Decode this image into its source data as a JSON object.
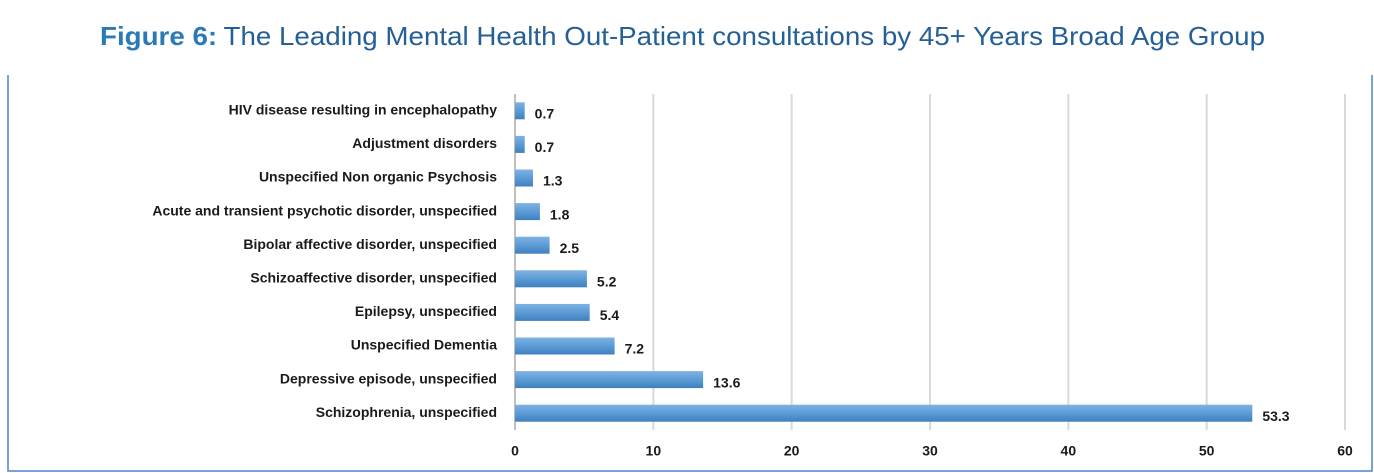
{
  "chart_data": {
    "type": "hbar",
    "title_label": "Figure 6:",
    "title": "The Leading Mental Health Out-Patient consultations by 45+ Years Broad Age Group",
    "categories": [
      "HIV disease resulting in encephalopathy",
      "Adjustment disorders",
      "Unspecified Non organic Psychosis",
      "Acute and transient psychotic disorder, unspecified",
      "Bipolar affective disorder, unspecified",
      "Schizoaffective disorder, unspecified",
      "Epilepsy, unspecified",
      "Unspecified Dementia",
      "Depressive episode, unspecified",
      "Schizophrenia, unspecified"
    ],
    "values": [
      0.7,
      0.7,
      1.3,
      1.8,
      2.5,
      5.2,
      5.4,
      7.2,
      13.6,
      53.3
    ],
    "color": "#5b9bd5",
    "xlim": [
      0,
      60
    ],
    "xticks": [
      0,
      10,
      20,
      30,
      40,
      50,
      60
    ],
    "grid": true
  }
}
